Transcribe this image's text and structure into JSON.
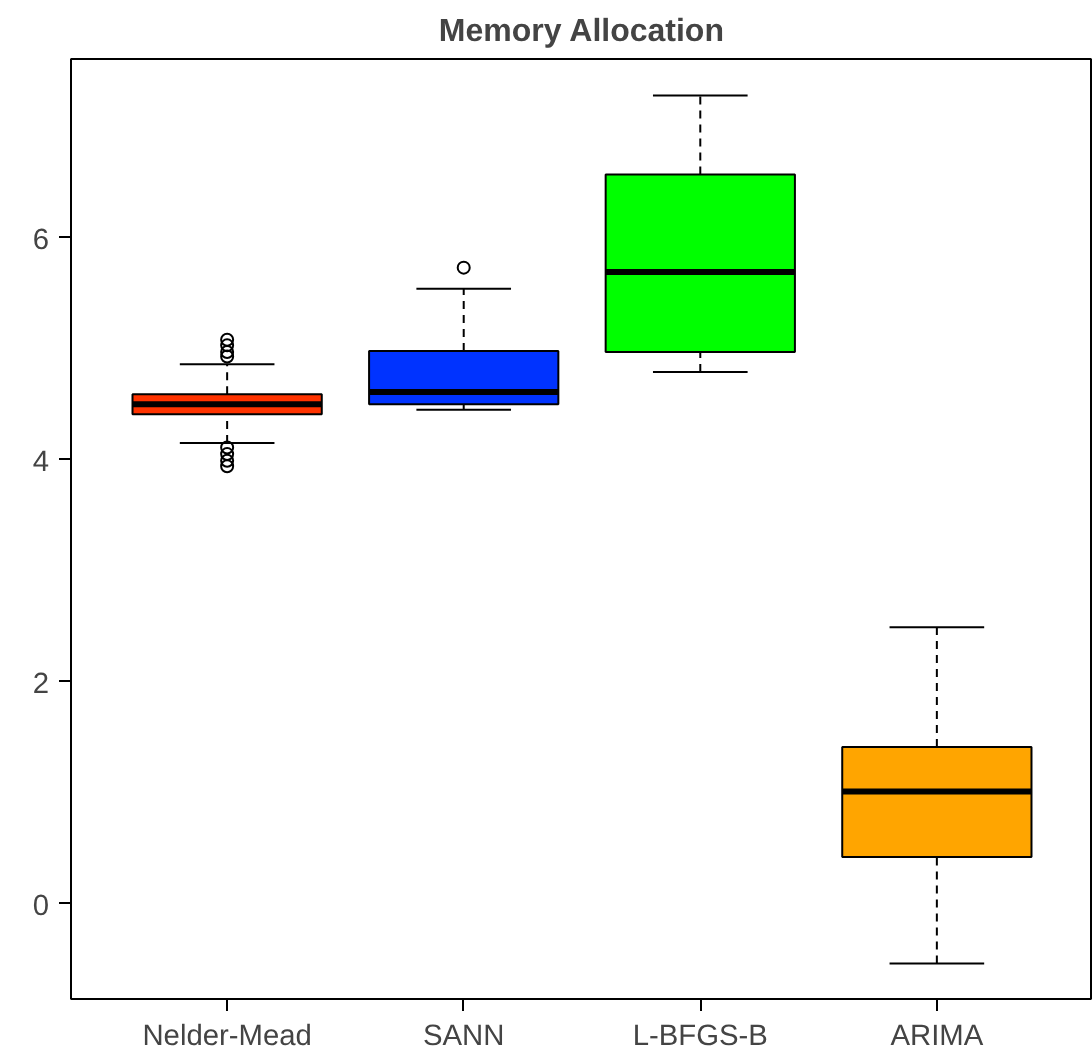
{
  "chart_data": {
    "type": "box",
    "title": "Memory Allocation",
    "categories": [
      "Nelder-Mead",
      "SANN",
      "L-BFGS-B",
      "ARIMA"
    ],
    "colors": [
      "#ff3300",
      "#0033ff",
      "#00ff00",
      "#ffa500"
    ],
    "boxes": [
      {
        "low": 4.15,
        "q1": 4.41,
        "median": 4.5,
        "q3": 4.59,
        "high": 4.86,
        "outliers": [
          5.08,
          5.03,
          4.97,
          4.93,
          4.11,
          4.05,
          3.99,
          3.94
        ]
      },
      {
        "low": 4.45,
        "q1": 4.5,
        "median": 4.61,
        "q3": 4.98,
        "high": 5.54,
        "outliers": [
          5.73
        ]
      },
      {
        "low": 4.79,
        "q1": 4.97,
        "median": 5.69,
        "q3": 6.57,
        "high": 7.28
      },
      {
        "low": -0.54,
        "q1": 0.42,
        "median": 1.01,
        "q3": 1.41,
        "high": 2.49
      }
    ],
    "ylim": [
      -0.86,
      7.61
    ],
    "yticks": [
      0,
      2,
      4,
      6
    ],
    "grid": false
  }
}
